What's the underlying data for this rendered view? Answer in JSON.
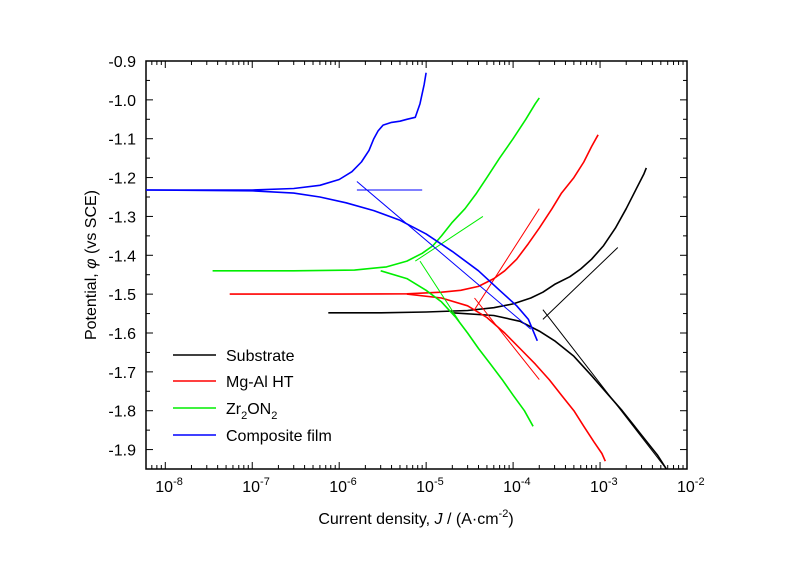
{
  "chart_data": {
    "type": "line",
    "title": "",
    "xscale": "log",
    "xlim": [
      6e-09,
      0.01
    ],
    "ylim": [
      -1.95,
      -0.9
    ],
    "xticks": [
      {
        "exp": "-8",
        "value": 1e-08
      },
      {
        "exp": "-7",
        "value": 1e-07
      },
      {
        "exp": "-6",
        "value": 1e-06
      },
      {
        "exp": "-5",
        "value": 1e-05
      },
      {
        "exp": "-4",
        "value": 0.0001
      },
      {
        "exp": "-3",
        "value": 0.001
      },
      {
        "exp": "-2",
        "value": 0.01
      }
    ],
    "yticks": [
      "-0.9",
      "-1.0",
      "-1.1",
      "-1.2",
      "-1.3",
      "-1.4",
      "-1.5",
      "-1.6",
      "-1.7",
      "-1.8",
      "-1.9"
    ],
    "xlabel": {
      "pre": "Current density, ",
      "var": "J",
      "mid": " / (A·cm",
      "sup": "-2",
      "post": ")"
    },
    "ylabel": {
      "pre": "Potential, ",
      "var": "φ",
      "post": " (vs SCE)"
    },
    "legend_position": "bottom-left",
    "series": [
      {
        "name": "Substrate",
        "label_main": "Substrate",
        "label_sub": "",
        "label_tail": "",
        "color": "#000000",
        "anodic": [
          [
            7.5e-07,
            -1.548
          ],
          [
            3e-06,
            -1.548
          ],
          [
            1e-05,
            -1.546
          ],
          [
            3e-05,
            -1.542
          ],
          [
            6e-05,
            -1.535
          ],
          [
            0.0001,
            -1.525
          ],
          [
            0.00016,
            -1.51
          ],
          [
            0.00022,
            -1.495
          ],
          [
            0.0003,
            -1.475
          ],
          [
            0.00045,
            -1.455
          ],
          [
            0.0006,
            -1.435
          ],
          [
            0.0008,
            -1.41
          ],
          [
            0.0011,
            -1.375
          ],
          [
            0.0015,
            -1.33
          ],
          [
            0.002,
            -1.28
          ],
          [
            0.0026,
            -1.23
          ],
          [
            0.0032,
            -1.19
          ],
          [
            0.0034,
            -1.175
          ]
        ],
        "cathodic": [
          [
            2e-05,
            -1.548
          ],
          [
            6e-05,
            -1.555
          ],
          [
            0.00012,
            -1.57
          ],
          [
            0.0002,
            -1.595
          ],
          [
            0.0003,
            -1.62
          ],
          [
            0.0005,
            -1.66
          ],
          [
            0.0008,
            -1.71
          ],
          [
            0.0012,
            -1.755
          ],
          [
            0.0018,
            -1.8
          ],
          [
            0.0026,
            -1.845
          ],
          [
            0.0036,
            -1.885
          ],
          [
            0.0046,
            -1.915
          ],
          [
            0.0058,
            -1.95
          ]
        ],
        "tafel": [
          [
            [
              0.00022,
              -1.565
            ],
            [
              0.0016,
              -1.38
            ]
          ],
          [
            [
              0.00022,
              -1.54
            ],
            [
              0.0058,
              -1.95
            ]
          ]
        ]
      },
      {
        "name": "Mg-Al HT",
        "label_main": "Mg-Al HT",
        "label_sub": "",
        "label_tail": "",
        "color": "#ff0000",
        "anodic": [
          [
            5.5e-08,
            -1.5
          ],
          [
            1e-06,
            -1.5
          ],
          [
            6e-06,
            -1.499
          ],
          [
            1.5e-05,
            -1.495
          ],
          [
            2.5e-05,
            -1.49
          ],
          [
            4e-05,
            -1.48
          ],
          [
            6e-05,
            -1.46
          ],
          [
            8e-05,
            -1.44
          ],
          [
            0.00011,
            -1.41
          ],
          [
            0.00015,
            -1.37
          ],
          [
            0.0002,
            -1.33
          ],
          [
            0.00028,
            -1.28
          ],
          [
            0.00036,
            -1.24
          ],
          [
            0.0005,
            -1.2
          ],
          [
            0.00065,
            -1.16
          ],
          [
            0.0008,
            -1.12
          ],
          [
            0.00095,
            -1.09
          ]
        ],
        "cathodic": [
          [
            6e-06,
            -1.5
          ],
          [
            1.5e-05,
            -1.51
          ],
          [
            3e-05,
            -1.53
          ],
          [
            5e-05,
            -1.56
          ],
          [
            8e-05,
            -1.6
          ],
          [
            0.00012,
            -1.64
          ],
          [
            0.00018,
            -1.68
          ],
          [
            0.00026,
            -1.72
          ],
          [
            0.00036,
            -1.76
          ],
          [
            0.0005,
            -1.8
          ],
          [
            0.00065,
            -1.84
          ],
          [
            0.00085,
            -1.88
          ],
          [
            0.00105,
            -1.91
          ],
          [
            0.00115,
            -1.93
          ]
        ],
        "tafel": [
          [
            [
              3.6e-05,
              -1.54
            ],
            [
              0.0002,
              -1.28
            ]
          ],
          [
            [
              3.6e-05,
              -1.51
            ],
            [
              0.0002,
              -1.72
            ]
          ]
        ]
      },
      {
        "name": "Zr2ON2",
        "label_main": "Zr",
        "label_sub": "2",
        "label_tail": "ON2",
        "color": "#00ee00",
        "anodic": [
          [
            3.5e-08,
            -1.44
          ],
          [
            3e-07,
            -1.44
          ],
          [
            1.5e-06,
            -1.438
          ],
          [
            3.5e-06,
            -1.43
          ],
          [
            6e-06,
            -1.415
          ],
          [
            9e-06,
            -1.395
          ],
          [
            1.2e-05,
            -1.375
          ],
          [
            1.5e-05,
            -1.35
          ],
          [
            2e-05,
            -1.315
          ],
          [
            2.8e-05,
            -1.28
          ],
          [
            3.8e-05,
            -1.24
          ],
          [
            5e-05,
            -1.2
          ],
          [
            7e-05,
            -1.15
          ],
          [
            0.0001,
            -1.1
          ],
          [
            0.00014,
            -1.05
          ],
          [
            0.00018,
            -1.01
          ],
          [
            0.0002,
            -0.995
          ]
        ],
        "cathodic": [
          [
            3e-06,
            -1.44
          ],
          [
            6e-06,
            -1.46
          ],
          [
            1e-05,
            -1.49
          ],
          [
            1.5e-05,
            -1.52
          ],
          [
            2.2e-05,
            -1.56
          ],
          [
            3e-05,
            -1.6
          ],
          [
            4e-05,
            -1.64
          ],
          [
            5.5e-05,
            -1.68
          ],
          [
            7.5e-05,
            -1.72
          ],
          [
            0.0001,
            -1.76
          ],
          [
            0.000135,
            -1.8
          ],
          [
            0.00017,
            -1.84
          ]
        ],
        "tafel": [
          [
            [
              7.5e-06,
              -1.415
            ],
            [
              4.5e-05,
              -1.3
            ]
          ],
          [
            [
              8.5e-06,
              -1.415
            ],
            [
              2.4e-05,
              -1.57
            ]
          ]
        ]
      },
      {
        "name": "Composite film",
        "label_main": "Composite film",
        "label_sub": "",
        "label_tail": "",
        "color": "#0000ff",
        "anodic": [
          [
            6e-09,
            -1.232
          ],
          [
            1e-07,
            -1.232
          ],
          [
            3e-07,
            -1.228
          ],
          [
            6e-07,
            -1.22
          ],
          [
            1e-06,
            -1.205
          ],
          [
            1.4e-06,
            -1.185
          ],
          [
            1.8e-06,
            -1.16
          ],
          [
            2.2e-06,
            -1.13
          ],
          [
            2.5e-06,
            -1.1
          ],
          [
            2.8e-06,
            -1.08
          ],
          [
            3.2e-06,
            -1.065
          ],
          [
            4e-06,
            -1.058
          ],
          [
            5e-06,
            -1.055
          ],
          [
            6e-06,
            -1.05
          ],
          [
            7.5e-06,
            -1.045
          ],
          [
            8.5e-06,
            -1.01
          ],
          [
            9.5e-06,
            -0.96
          ],
          [
            1e-05,
            -0.93
          ]
        ],
        "cathodic": [
          [
            6e-09,
            -1.232
          ],
          [
            1e-07,
            -1.234
          ],
          [
            3e-07,
            -1.24
          ],
          [
            6e-07,
            -1.25
          ],
          [
            1.2e-06,
            -1.265
          ],
          [
            2.5e-06,
            -1.285
          ],
          [
            5e-06,
            -1.31
          ],
          [
            1e-05,
            -1.345
          ],
          [
            2e-05,
            -1.39
          ],
          [
            4e-05,
            -1.44
          ],
          [
            7e-05,
            -1.49
          ],
          [
            0.00011,
            -1.53
          ],
          [
            0.00015,
            -1.565
          ],
          [
            0.00019,
            -1.62
          ]
        ],
        "tafel": [
          [
            [
              1.6e-06,
              -1.232
            ],
            [
              9e-06,
              -1.232
            ]
          ],
          [
            [
              1.6e-06,
              -1.21
            ],
            [
              0.00016,
              -1.59
            ]
          ]
        ]
      }
    ]
  }
}
